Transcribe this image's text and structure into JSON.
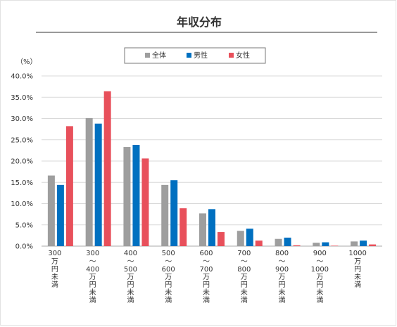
{
  "chart_data": {
    "type": "bar",
    "title": "年収分布",
    "ylabel": "（%）",
    "ylim": [
      0,
      40
    ],
    "yticks": [
      "0.0%",
      "5.0%",
      "10.0%",
      "15.0%",
      "20.0%",
      "25.0%",
      "30.0%",
      "35.0%",
      "40.0%"
    ],
    "grid": true,
    "legend_position": "top-center",
    "categories": [
      {
        "top": "300",
        "lines": [
          "万",
          "円",
          "未",
          "満"
        ]
      },
      {
        "top": "300",
        "lines": [
          "～",
          "400",
          "万",
          "円",
          "未",
          "満"
        ]
      },
      {
        "top": "400",
        "lines": [
          "～",
          "500",
          "万",
          "円",
          "未",
          "満"
        ]
      },
      {
        "top": "500",
        "lines": [
          "～",
          "600",
          "万",
          "円",
          "未",
          "満"
        ]
      },
      {
        "top": "600",
        "lines": [
          "～",
          "700",
          "万",
          "円",
          "未",
          "満"
        ]
      },
      {
        "top": "700",
        "lines": [
          "～",
          "800",
          "万",
          "円",
          "未",
          "満"
        ]
      },
      {
        "top": "800",
        "lines": [
          "～",
          "900",
          "万",
          "円",
          "未",
          "満"
        ]
      },
      {
        "top": "900",
        "lines": [
          "～",
          "1000",
          "万",
          "円",
          "未",
          "満"
        ]
      },
      {
        "top": "1000",
        "lines": [
          "万",
          "円",
          "未",
          "満"
        ]
      }
    ],
    "series": [
      {
        "name": "全体",
        "color": "#9e9e9e",
        "values": [
          16.6,
          30.1,
          23.3,
          14.4,
          7.7,
          3.6,
          1.7,
          0.8,
          1.1
        ]
      },
      {
        "name": "男性",
        "color": "#0070c0",
        "values": [
          14.4,
          28.8,
          23.8,
          15.5,
          8.7,
          4.1,
          2.0,
          0.9,
          1.3
        ]
      },
      {
        "name": "女性",
        "color": "#e8505b",
        "values": [
          28.2,
          36.4,
          20.6,
          8.9,
          3.3,
          1.3,
          0.2,
          0.1,
          0.4
        ]
      }
    ]
  }
}
